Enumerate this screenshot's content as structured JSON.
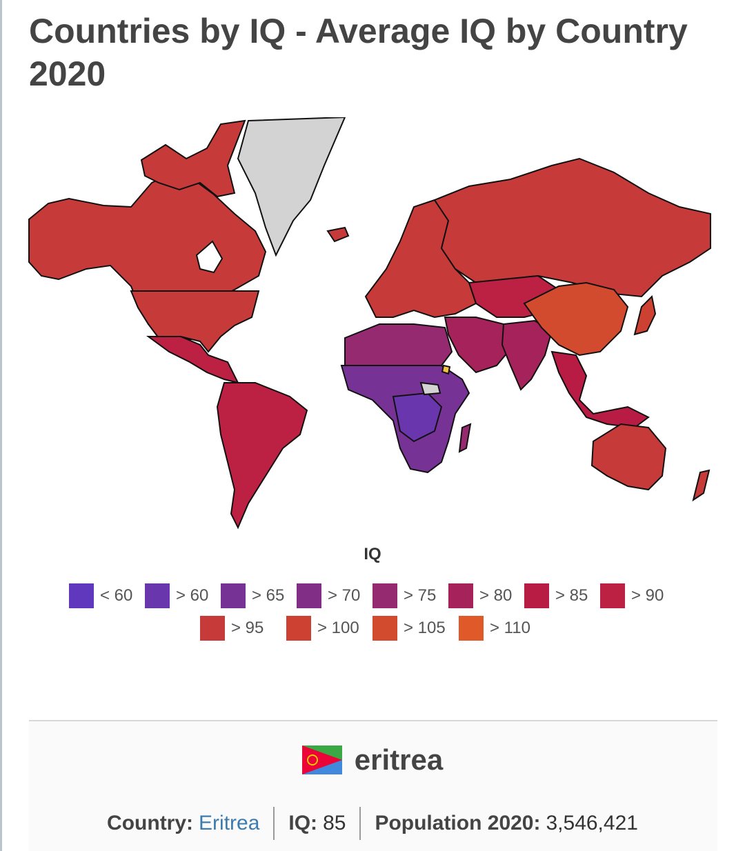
{
  "title": "Countries by IQ - Average IQ by Country 2020",
  "legend": {
    "title": "IQ",
    "items": [
      {
        "label": "< 60",
        "color": "#5f38be"
      },
      {
        "label": "> 60",
        "color": "#6a36ae"
      },
      {
        "label": "> 65",
        "color": "#773295"
      },
      {
        "label": "> 70",
        "color": "#812e86"
      },
      {
        "label": "> 75",
        "color": "#952a70"
      },
      {
        "label": "> 80",
        "color": "#a6225a"
      },
      {
        "label": "> 85",
        "color": "#b81b44"
      },
      {
        "label": "> 90",
        "color": "#bc2042"
      },
      {
        "label": "> 95",
        "color": "#c73a3a"
      },
      {
        "label": "> 100",
        "color": "#cc4131"
      },
      {
        "label": "> 105",
        "color": "#d34b2e"
      },
      {
        "label": "> 110",
        "color": "#df5a28"
      }
    ]
  },
  "selected": {
    "name": "eritrea",
    "country_label": "Country:",
    "country_value": "Eritrea",
    "iq_label": "IQ:",
    "iq_value": "85",
    "population_label": "Population 2020:",
    "population_value": "3,546,421"
  },
  "colors": {
    "no_data": "#d3d3d3",
    "border": "#111111"
  }
}
